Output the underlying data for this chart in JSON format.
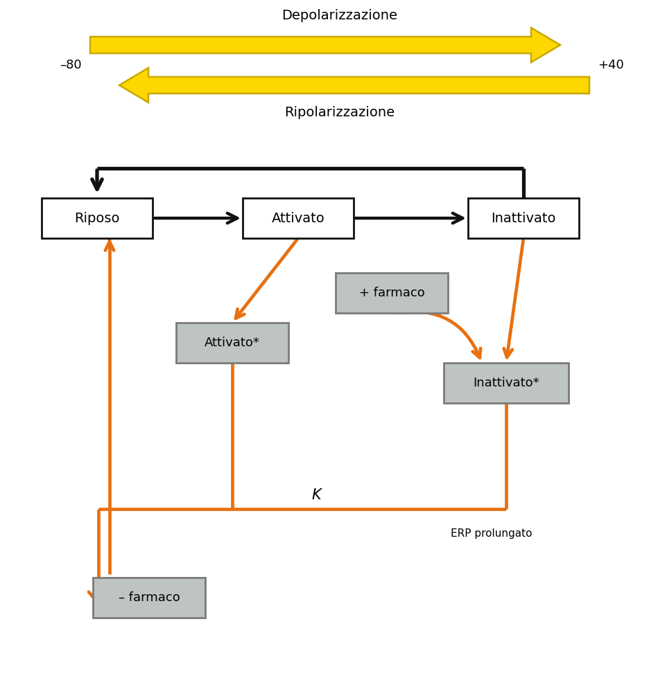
{
  "bg_color": "#ffffff",
  "yellow_color": "#FFD700",
  "yellow_edge": "#C8A800",
  "orange_color": "#E87010",
  "black_color": "#111111",
  "gray_box_color": "#BEC4C0",
  "gray_box_edge": "#7a7a7a",
  "white_box_color": "#ffffff",
  "white_box_edge": "#111111",
  "depol_label": "Depolarizzazione",
  "repol_label": "Ripolarizzazione",
  "minus80": "–80",
  "plus40": "+40",
  "riposo_label": "Riposo",
  "attivato_label": "Attivato",
  "inattivato_label": "Inattivato",
  "attivato_star_label": "Attivato*",
  "inattivato_star_label": "Inattivato*",
  "plus_farmaco_label": "+ farmaco",
  "minus_farmaco_label": "– farmaco",
  "K_label": "K",
  "ERP_label": "ERP prolungato",
  "fig_w": 9.49,
  "fig_h": 10.05
}
